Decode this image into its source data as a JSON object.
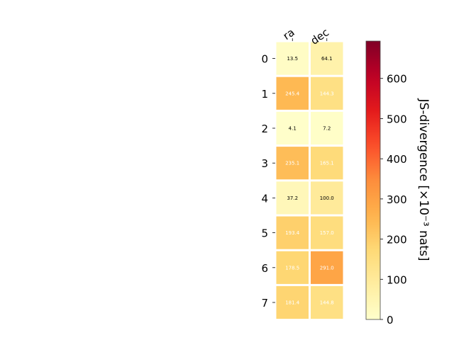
{
  "chart_data": {
    "type": "heatmap",
    "x_categories": [
      "ra",
      "dec"
    ],
    "y_categories": [
      "0",
      "1",
      "2",
      "3",
      "4",
      "5",
      "6",
      "7"
    ],
    "values": [
      [
        13.5,
        64.1
      ],
      [
        245.4,
        144.3
      ],
      [
        4.1,
        7.2
      ],
      [
        235.1,
        165.1
      ],
      [
        37.2,
        100.0
      ],
      [
        193.4,
        157.0
      ],
      [
        178.5,
        291.0
      ],
      [
        181.4,
        144.8
      ]
    ],
    "value_labels": [
      [
        "13.5",
        "64.1"
      ],
      [
        "245.4",
        "144.3"
      ],
      [
        "4.1",
        "7.2"
      ],
      [
        "235.1",
        "165.1"
      ],
      [
        "37.2",
        "100.0"
      ],
      [
        "193.4",
        "157.0"
      ],
      [
        "178.5",
        "291.0"
      ],
      [
        "181.4",
        "144.8"
      ]
    ],
    "colorbar": {
      "label": "JS-divergence [×10⁻³ nats]",
      "range": [
        0,
        693
      ],
      "ticks": [
        0,
        100,
        200,
        300,
        400,
        500,
        600
      ],
      "colormap": "YlOrRd"
    },
    "colors": {
      "cell_border": "#ffffff",
      "dark_label": "#000000",
      "light_label": "#ffffff"
    }
  }
}
